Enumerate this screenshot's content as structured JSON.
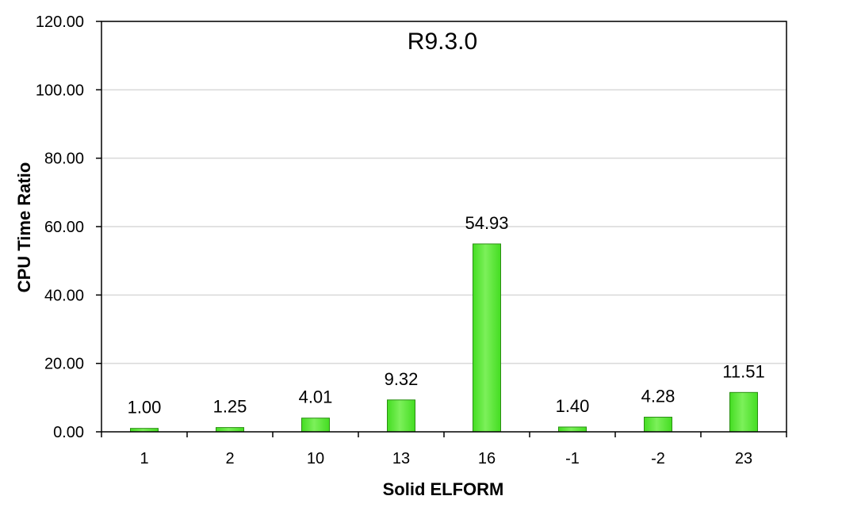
{
  "chart_data": {
    "type": "bar",
    "title": "R9.3.0",
    "xlabel": "Solid ELFORM",
    "ylabel": "CPU Time Ratio",
    "categories": [
      "1",
      "2",
      "10",
      "13",
      "16",
      "-1",
      "-2",
      "23"
    ],
    "values": [
      1.0,
      1.25,
      4.01,
      9.32,
      54.93,
      1.4,
      4.28,
      11.51
    ],
    "data_labels": [
      "1.00",
      "1.25",
      "4.01",
      "9.32",
      "54.93",
      "1.40",
      "4.28",
      "11.51"
    ],
    "ylim": [
      0,
      120
    ],
    "yticks": [
      0,
      20,
      40,
      60,
      80,
      100,
      120
    ],
    "ytick_labels": [
      "0.00",
      "20.00",
      "40.00",
      "60.00",
      "80.00",
      "100.00",
      "120.00"
    ],
    "grid": true,
    "legend": "none",
    "colors": {
      "bar_fill": "#44dd22",
      "bar_light": "#7cf05a",
      "bar_stroke": "#2a8f12",
      "grid": "#d9d9d9",
      "axis": "#000000"
    }
  }
}
